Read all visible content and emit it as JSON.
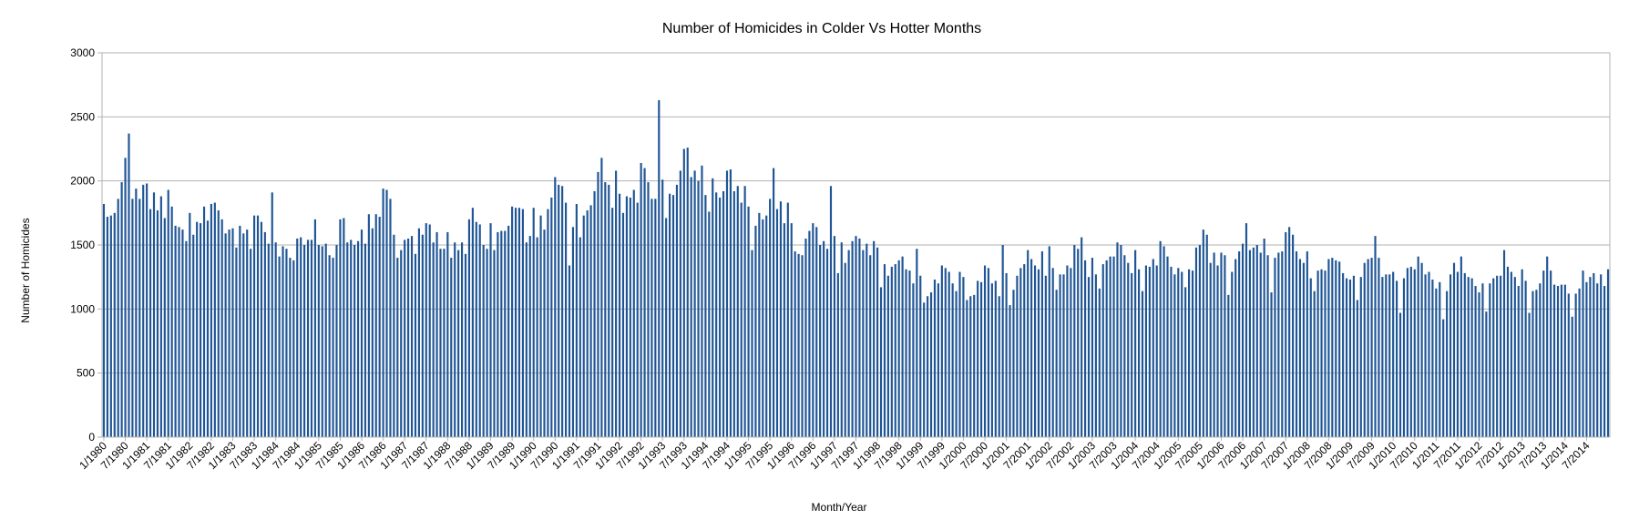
{
  "chart_data": {
    "type": "bar",
    "title": "Number of Homicides in Colder Vs Hotter Months",
    "xlabel": "Month/Year",
    "ylabel": "Number of Homicides",
    "ylim": [
      0,
      3000
    ],
    "yticks": [
      0,
      500,
      1000,
      1500,
      2000,
      2500,
      3000
    ],
    "grid": true,
    "legend": "none",
    "bar_color": "#1f5595",
    "start": "1980-01",
    "end": "2015-03",
    "x_tick_labels": [
      "1/1980",
      "7/1980",
      "1/1981",
      "7/1981",
      "1/1982",
      "7/1982",
      "1/1983",
      "7/1983",
      "1/1984",
      "7/1984",
      "1/1985",
      "7/1985",
      "1/1986",
      "7/1986",
      "1/1987",
      "7/1987",
      "1/1988",
      "7/1988",
      "1/1989",
      "7/1989",
      "1/1990",
      "7/1990",
      "1/1991",
      "7/1991",
      "1/1992",
      "7/1992",
      "1/1993",
      "7/1993",
      "1/1994",
      "7/1994",
      "1/1995",
      "7/1995",
      "1/1996",
      "7/1996",
      "1/1997",
      "7/1997",
      "1/1998",
      "7/1998",
      "1/1999",
      "7/1999",
      "1/2000",
      "7/2000",
      "1/2001",
      "7/2001",
      "1/2002",
      "7/2002",
      "1/2003",
      "7/2003",
      "1/2004",
      "7/2004",
      "1/2005",
      "7/2005",
      "1/2006",
      "7/2006",
      "1/2007",
      "7/2007",
      "1/2008",
      "7/2008",
      "1/2009",
      "7/2009",
      "1/2010",
      "7/2010",
      "1/2011",
      "7/2011",
      "1/2012",
      "7/2012",
      "1/2013",
      "7/2013",
      "1/2014",
      "7/2014"
    ],
    "values": [
      1820,
      1720,
      1730,
      1750,
      1860,
      1990,
      2180,
      2370,
      1860,
      1940,
      1860,
      1970,
      1980,
      1780,
      1910,
      1770,
      1880,
      1710,
      1930,
      1800,
      1650,
      1640,
      1620,
      1530,
      1750,
      1580,
      1680,
      1670,
      1800,
      1690,
      1820,
      1830,
      1770,
      1700,
      1590,
      1620,
      1630,
      1480,
      1650,
      1590,
      1620,
      1470,
      1730,
      1730,
      1680,
      1600,
      1510,
      1910,
      1520,
      1410,
      1490,
      1470,
      1400,
      1380,
      1550,
      1560,
      1500,
      1540,
      1540,
      1700,
      1500,
      1490,
      1510,
      1420,
      1400,
      1500,
      1700,
      1710,
      1520,
      1540,
      1500,
      1530,
      1620,
      1510,
      1740,
      1630,
      1740,
      1720,
      1940,
      1930,
      1860,
      1580,
      1400,
      1460,
      1540,
      1550,
      1570,
      1430,
      1630,
      1580,
      1670,
      1660,
      1520,
      1600,
      1470,
      1470,
      1600,
      1400,
      1520,
      1460,
      1520,
      1430,
      1700,
      1790,
      1680,
      1660,
      1500,
      1470,
      1670,
      1460,
      1600,
      1610,
      1610,
      1650,
      1800,
      1790,
      1790,
      1780,
      1520,
      1570,
      1790,
      1560,
      1730,
      1620,
      1780,
      1870,
      2030,
      1970,
      1960,
      1830,
      1340,
      1640,
      1820,
      1560,
      1730,
      1770,
      1810,
      1920,
      2070,
      2180,
      1990,
      1970,
      1790,
      2080,
      1900,
      1750,
      1880,
      1870,
      1930,
      1830,
      2140,
      2100,
      1990,
      1860,
      1860,
      2630,
      2010,
      1710,
      1900,
      1890,
      1970,
      2080,
      2250,
      2260,
      2030,
      2080,
      2000,
      2120,
      1890,
      1760,
      2020,
      1910,
      1870,
      1920,
      2080,
      2090,
      1920,
      1960,
      1830,
      1960,
      1800,
      1460,
      1650,
      1750,
      1700,
      1730,
      1860,
      2100,
      1780,
      1840,
      1670,
      1830,
      1670,
      1450,
      1430,
      1420,
      1550,
      1610,
      1670,
      1640,
      1500,
      1530,
      1470,
      1960,
      1570,
      1280,
      1520,
      1360,
      1460,
      1530,
      1570,
      1550,
      1460,
      1510,
      1420,
      1530,
      1480,
      1170,
      1350,
      1260,
      1330,
      1350,
      1380,
      1410,
      1310,
      1300,
      1200,
      1470,
      1260,
      1050,
      1100,
      1130,
      1230,
      1200,
      1340,
      1320,
      1290,
      1200,
      1140,
      1290,
      1250,
      1070,
      1100,
      1110,
      1220,
      1210,
      1340,
      1320,
      1200,
      1220,
      1100,
      1500,
      1280,
      1030,
      1150,
      1260,
      1320,
      1350,
      1460,
      1390,
      1340,
      1310,
      1450,
      1260,
      1490,
      1320,
      1150,
      1270,
      1270,
      1340,
      1320,
      1500,
      1470,
      1560,
      1380,
      1250,
      1400,
      1270,
      1160,
      1350,
      1380,
      1410,
      1410,
      1520,
      1500,
      1420,
      1360,
      1280,
      1460,
      1310,
      1140,
      1340,
      1330,
      1390,
      1340,
      1530,
      1490,
      1410,
      1330,
      1270,
      1320,
      1290,
      1170,
      1310,
      1300,
      1480,
      1500,
      1620,
      1580,
      1360,
      1440,
      1340,
      1440,
      1420,
      1110,
      1290,
      1390,
      1450,
      1510,
      1670,
      1460,
      1480,
      1500,
      1440,
      1550,
      1420,
      1130,
      1400,
      1440,
      1450,
      1600,
      1640,
      1580,
      1450,
      1390,
      1360,
      1450,
      1240,
      1140,
      1300,
      1310,
      1300,
      1390,
      1400,
      1380,
      1370,
      1280,
      1240,
      1230,
      1260,
      1070,
      1250,
      1360,
      1390,
      1400,
      1570,
      1400,
      1250,
      1270,
      1270,
      1290,
      1220,
      970,
      1240,
      1320,
      1330,
      1310,
      1410,
      1360,
      1270,
      1290,
      1230,
      1160,
      1210,
      920,
      1140,
      1270,
      1360,
      1290,
      1410,
      1280,
      1250,
      1240,
      1180,
      1130,
      1200,
      980,
      1200,
      1240,
      1260,
      1260,
      1460,
      1330,
      1290,
      1250,
      1180,
      1310,
      1220,
      970,
      1140,
      1150,
      1200,
      1300,
      1410,
      1300,
      1190,
      1180,
      1190,
      1190,
      1120,
      940,
      1120,
      1160,
      1300,
      1210,
      1250,
      1280,
      1200,
      1270,
      1180,
      1310
    ]
  }
}
